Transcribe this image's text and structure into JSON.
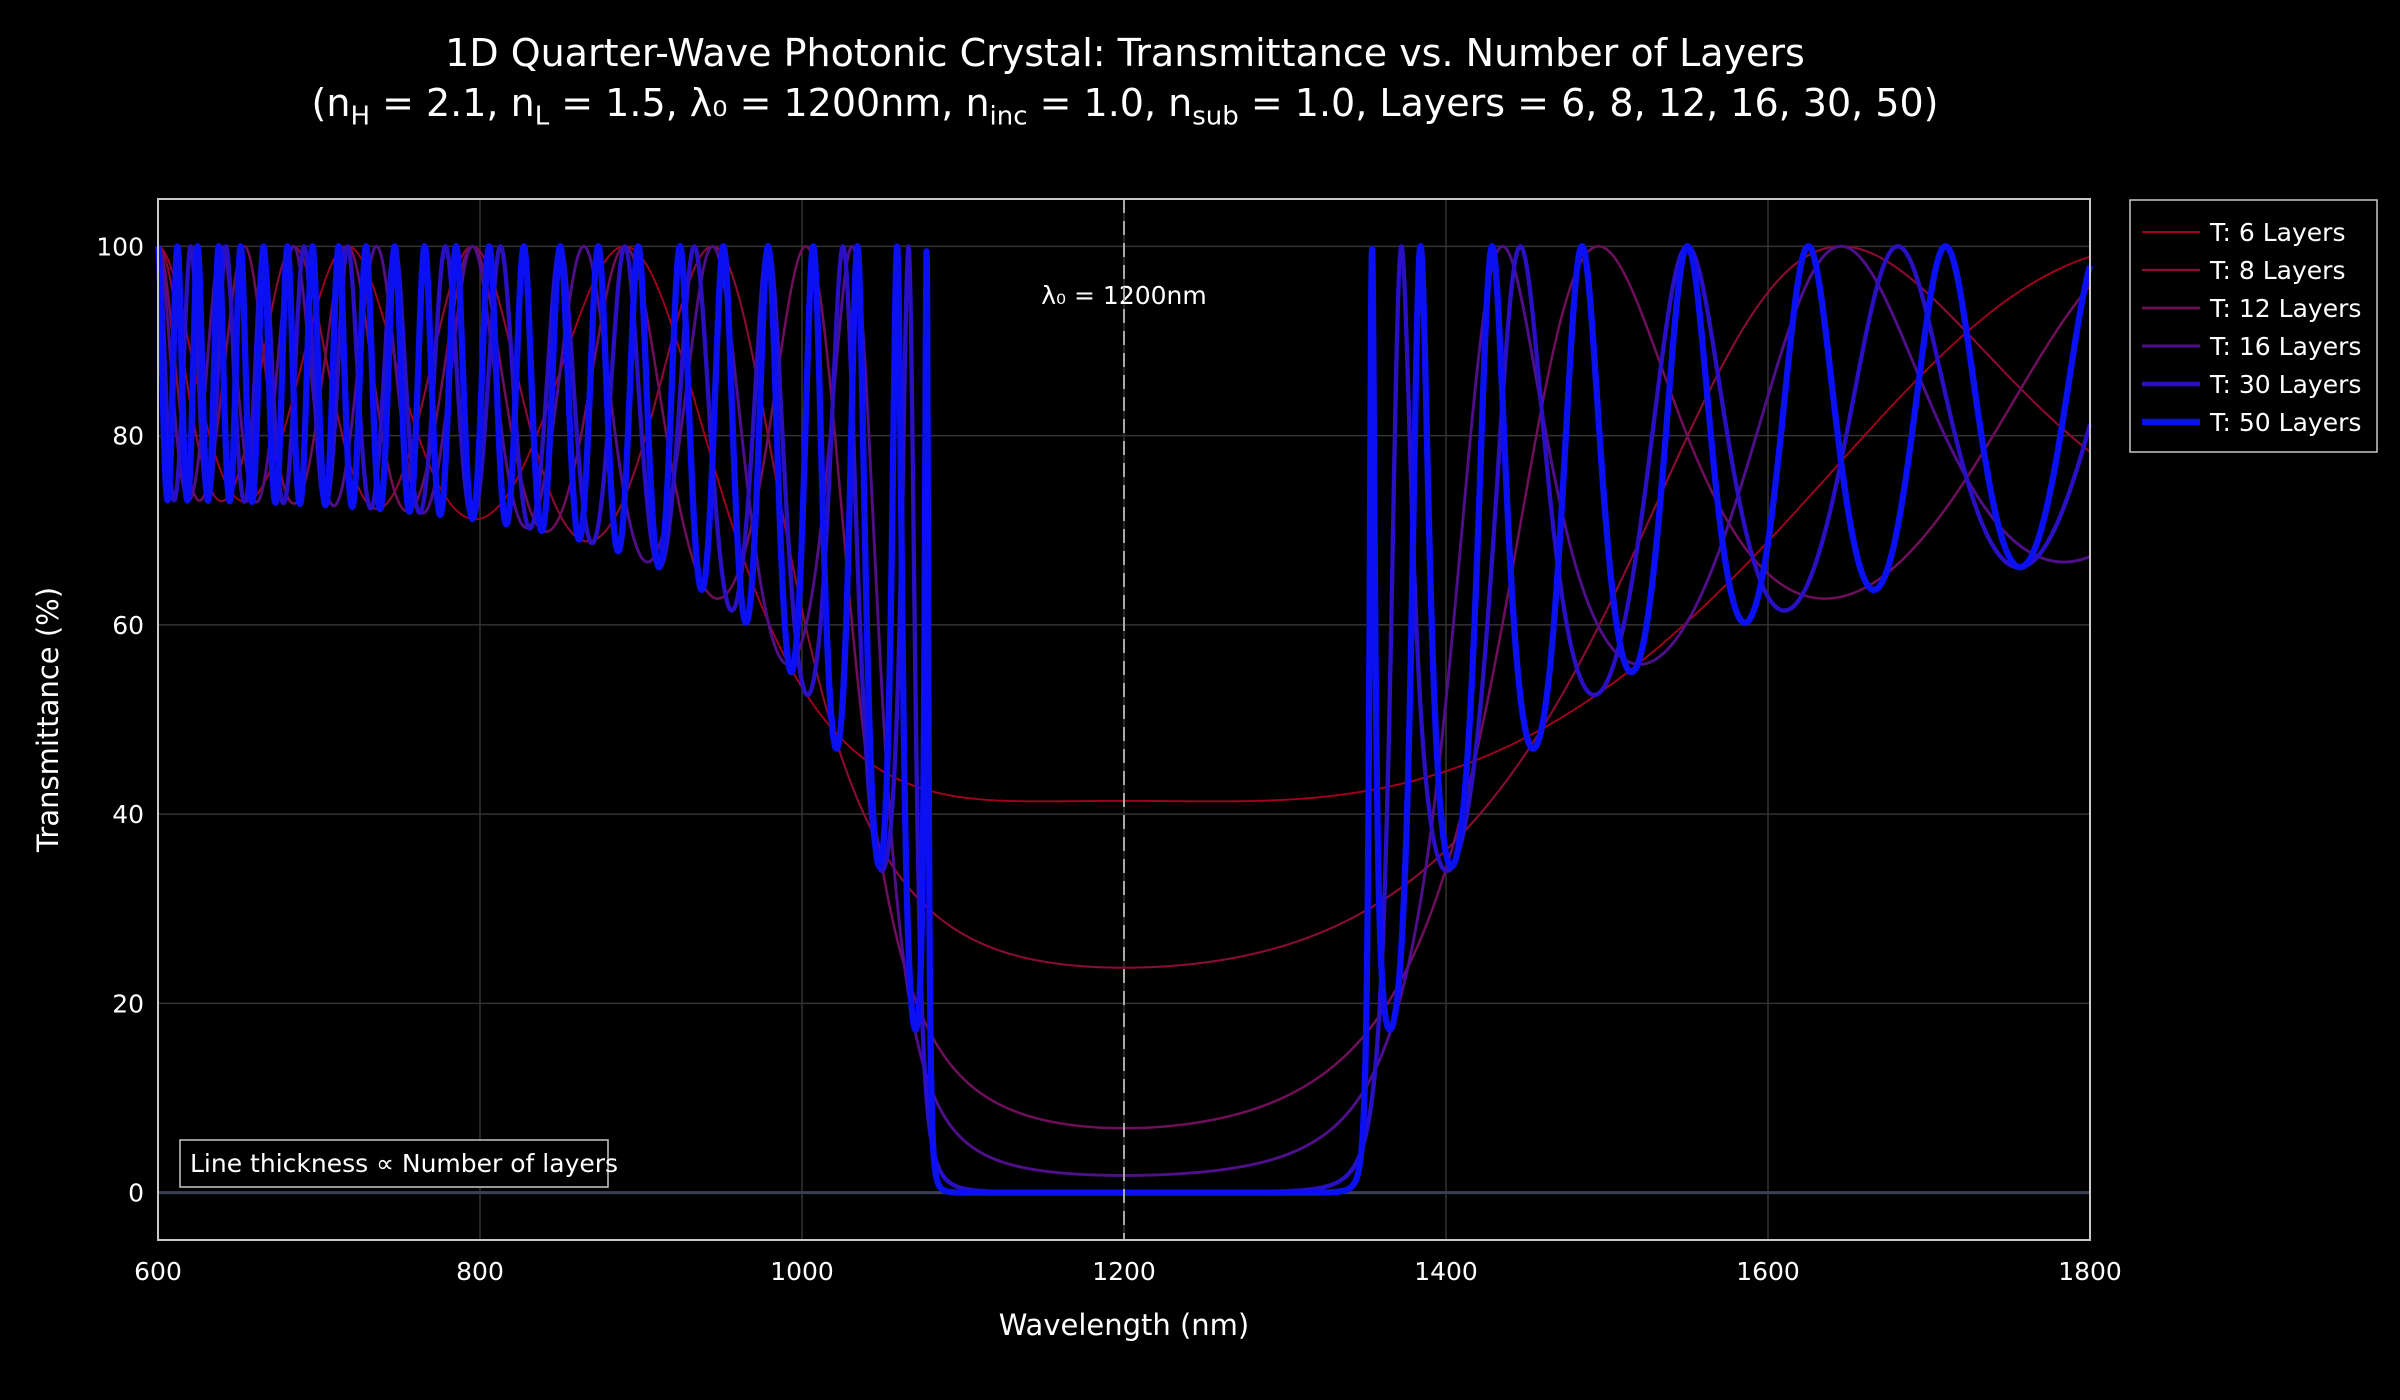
{
  "chart_data": {
    "type": "line",
    "title": "1D Quarter-Wave Photonic Crystal: Transmittance vs. Number of Layers",
    "subtitle": {
      "open": "(n",
      "nH_sub": "H",
      "t1": " = 2.1, n",
      "nL_sub": "L",
      "t2": " = 1.5, λ₀ = 1200nm, n",
      "inc_sub": "inc",
      "t3": " = 1.0, n",
      "sub_sub": "sub",
      "t4": " = 1.0, Layers = 6, 8, 12, 16, 30, 50)"
    },
    "params": {
      "nH": 2.1,
      "nL": 1.5,
      "lambda0": 1200,
      "n_inc": 1.0,
      "n_sub": 1.0
    },
    "xlabel": "Wavelength (nm)",
    "ylabel": "Transmittance (%)",
    "xlim": [
      600,
      1800
    ],
    "ylim": [
      -5,
      105
    ],
    "xticks": [
      600,
      800,
      1000,
      1200,
      1400,
      1600,
      1800
    ],
    "yticks": [
      0,
      20,
      40,
      60,
      80,
      100
    ],
    "grid": true,
    "legend_position": "top-right, outside",
    "series": [
      {
        "name": "T: 6 Layers",
        "layers": 6,
        "color": "#a0001e"
      },
      {
        "name": "T: 8 Layers",
        "layers": 8,
        "color": "#8a0a38"
      },
      {
        "name": "T: 12 Layers",
        "layers": 12,
        "color": "#6f0f5c"
      },
      {
        "name": "T: 16 Layers",
        "layers": 16,
        "color": "#4f0f8a"
      },
      {
        "name": "T: 30 Layers",
        "layers": 30,
        "color": "#2a10c4"
      },
      {
        "name": "T: 50 Layers",
        "layers": 50,
        "color": "#0a10f2"
      }
    ],
    "center_line": {
      "x": 1200,
      "label": "λ₀ = 1200nm"
    },
    "annotation": "Line thickness ∝ Number of layers"
  }
}
